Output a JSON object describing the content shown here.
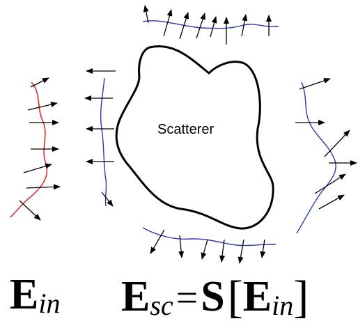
{
  "scatterer_label": "Scatterer",
  "equations": {
    "left": {
      "symbol": "E",
      "subscript": "in"
    },
    "right": {
      "lhs_symbol": "E",
      "lhs_subscript": "sc",
      "equals": "=",
      "operator": "S",
      "open_bracket": "[",
      "arg_symbol": "E",
      "arg_subscript": "in",
      "close_bracket": "]"
    }
  },
  "colors": {
    "incident_wave": "#d32f2f",
    "scattered_wave": "#2a3aa8",
    "outline": "#000000",
    "arrow": "#000000"
  }
}
